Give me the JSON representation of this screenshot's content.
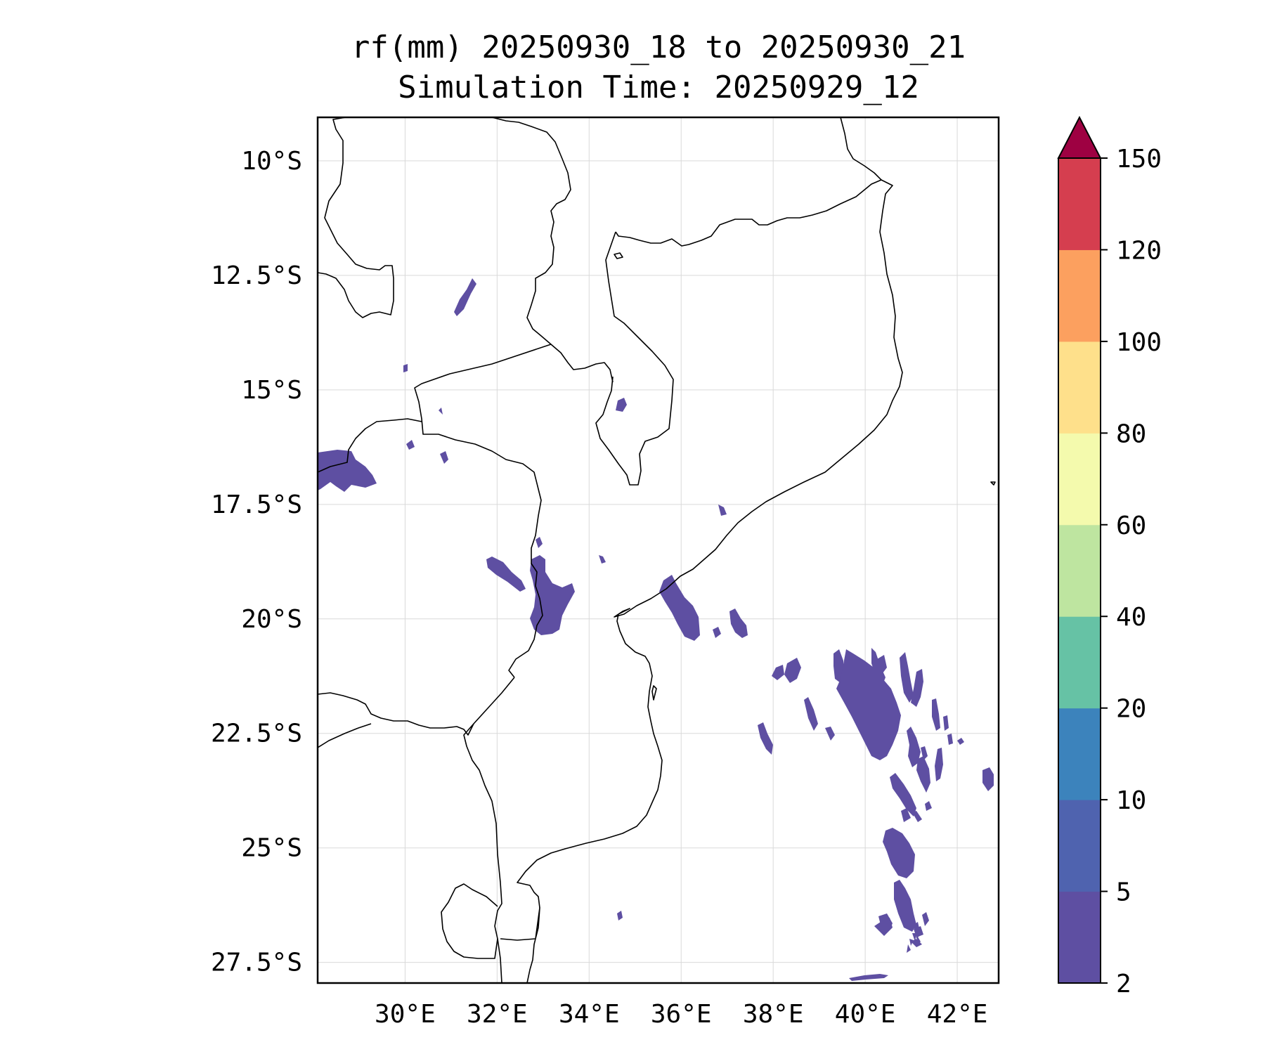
{
  "title": {
    "line1": "rf(mm) 20250930_18 to 20250930_21",
    "line2": "Simulation Time: 20250929_12"
  },
  "map": {
    "lon_range": [
      28.1,
      42.9
    ],
    "lat_range": [
      -27.95,
      -9.05
    ],
    "lon_ticks": [
      30,
      32,
      34,
      36,
      38,
      40,
      42
    ],
    "lat_ticks": [
      -10,
      -12.5,
      -15,
      -17.5,
      -20,
      -22.5,
      -25,
      -27.5
    ],
    "lon_labels": [
      "30°E",
      "32°E",
      "34°E",
      "36°E",
      "38°E",
      "40°E",
      "42°E"
    ],
    "lat_labels": [
      "10°S",
      "12.5°S",
      "15°S",
      "17.5°S",
      "20°S",
      "22.5°S",
      "25°S",
      "27.5°S"
    ],
    "grid": true,
    "rain_color": "#5e4fa2"
  },
  "colorbar": {
    "levels": [
      "2",
      "5",
      "10",
      "20",
      "40",
      "60",
      "80",
      "100",
      "120",
      "150"
    ],
    "colors": [
      "#5e4fa2",
      "#4f63af",
      "#3c83bc",
      "#66c2a5",
      "#bee5a0",
      "#f4faad",
      "#fee08b",
      "#fca05f",
      "#d53e4f"
    ],
    "extend_color": "#9e0142",
    "extend": "max"
  }
}
